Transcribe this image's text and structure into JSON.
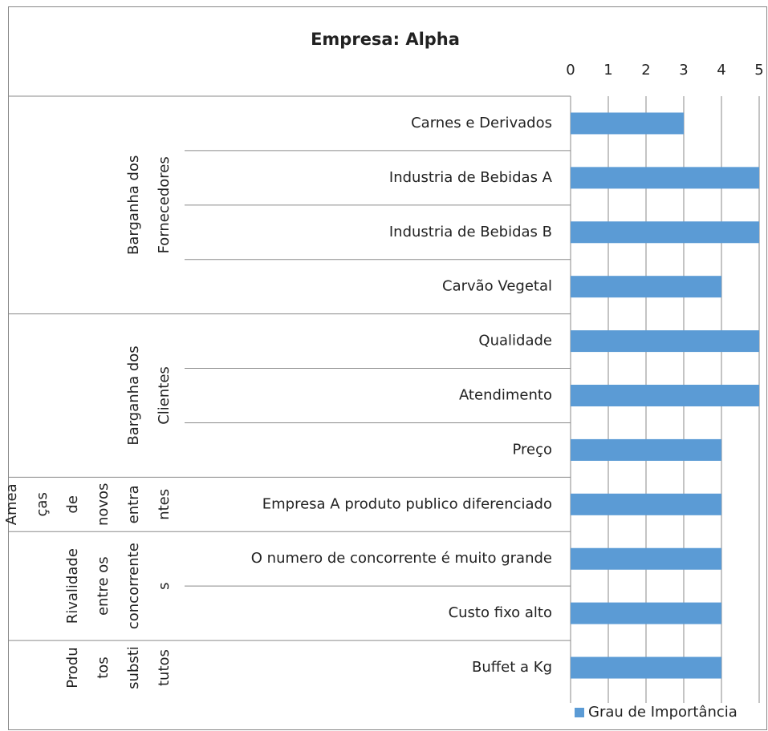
{
  "chart_data": {
    "type": "hbar",
    "title": "Empresa: Alpha",
    "groups": [
      {
        "label_lines": [
          "Barganha dos",
          "Fornecedores"
        ],
        "categories": [
          "Carnes e Derivados",
          "Industria de Bebidas A",
          "Industria de Bebidas B",
          "Carvão Vegetal"
        ]
      },
      {
        "label_lines": [
          "Barganha dos",
          "Clientes"
        ],
        "categories": [
          "Qualidade",
          "Atendimento",
          "Preço"
        ]
      },
      {
        "label_lines": [
          "Amea",
          "ças",
          "de",
          "novos",
          "entra",
          "ntes"
        ],
        "categories": [
          "Empresa A produto publico diferenciado"
        ]
      },
      {
        "label_lines": [
          "Rivalidade",
          "entre os",
          "concorrente",
          "s"
        ],
        "categories": [
          "O numero de concorrente é muito grande",
          "Custo fixo alto"
        ]
      },
      {
        "label_lines": [
          "Produ",
          "tos",
          "substi",
          "tutos"
        ],
        "categories": [
          "Buffet a Kg"
        ]
      }
    ],
    "series": [
      {
        "name": "Grau de Importância",
        "color": "#5b9bd5",
        "values": [
          3,
          5,
          5,
          4,
          5,
          5,
          4,
          4,
          4,
          4,
          4
        ]
      }
    ],
    "xlim": [
      0,
      5
    ],
    "xticks": [
      0,
      1,
      2,
      3,
      4,
      5
    ],
    "grid": true,
    "legend": "bottom-right"
  }
}
